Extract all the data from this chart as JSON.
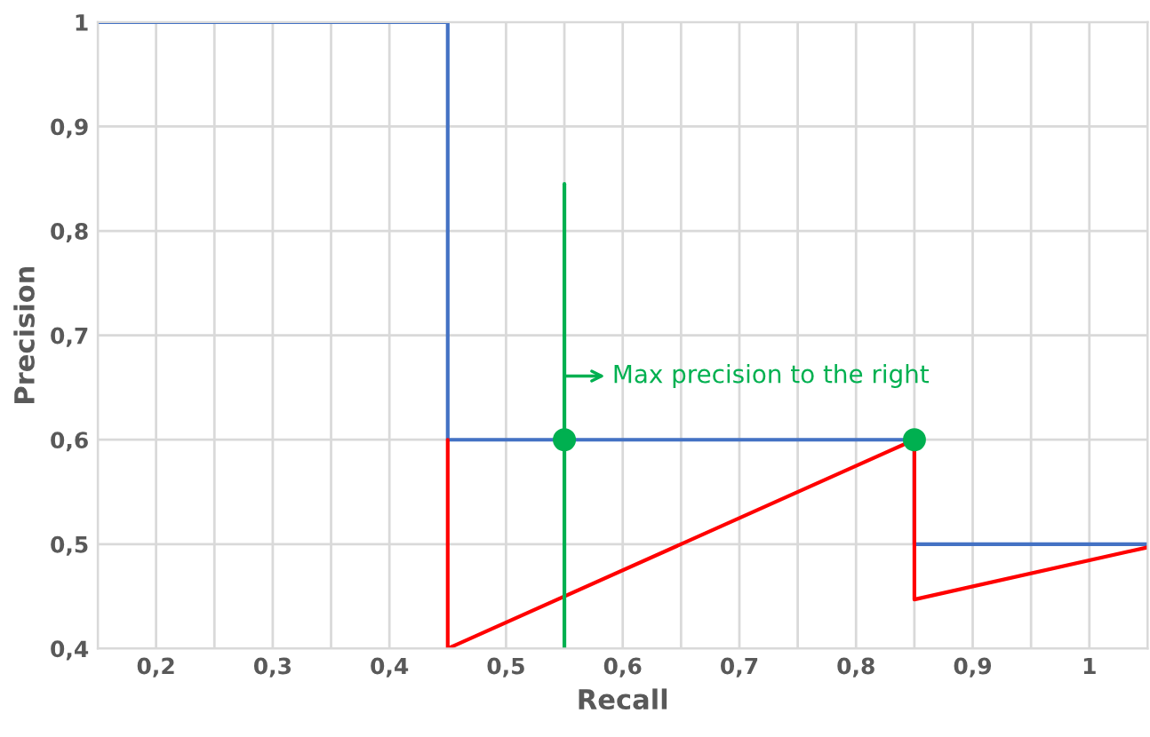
{
  "chart_data": {
    "type": "line",
    "xlabel": "Recall",
    "ylabel": "Precision",
    "x": [
      0.15,
      0.45,
      0.45,
      0.85,
      0.85,
      1.05
    ],
    "series": [
      {
        "color": "#4472c4",
        "values": [
          1,
          1,
          0.6,
          0.6,
          0.5,
          0.5
        ]
      },
      {
        "color": "#ff0000",
        "x": [
          0.45,
          0.45,
          0.85,
          0.85,
          1.05
        ],
        "values": [
          0.6,
          0.4,
          0.6,
          0.447,
          0.497
        ]
      },
      {
        "color": "#00b050",
        "x": [
          0.55,
          0.55
        ],
        "values": [
          0.4,
          0.845
        ]
      },
      {
        "type": "scatter",
        "color": "#00b050",
        "x": [
          0.55,
          0.85
        ],
        "values": [
          0.6,
          0.6
        ]
      }
    ],
    "annotations": [
      "Max precision to the right"
    ],
    "xlim": [
      0.15,
      1.05
    ],
    "xticks": [
      {
        "value": 0.15,
        "label": null
      },
      {
        "value": 0.2,
        "label": "0,2"
      },
      {
        "value": 0.25,
        "label": null
      },
      {
        "value": 0.3,
        "label": "0,3"
      },
      {
        "value": 0.35,
        "label": null
      },
      {
        "value": 0.4,
        "label": "0,4"
      },
      {
        "value": 0.45,
        "label": null
      },
      {
        "value": 0.5,
        "label": "0,5"
      },
      {
        "value": 0.55,
        "label": null
      },
      {
        "value": 0.6,
        "label": "0,6"
      },
      {
        "value": 0.65,
        "label": null
      },
      {
        "value": 0.7,
        "label": "0,7"
      },
      {
        "value": 0.75,
        "label": null
      },
      {
        "value": 0.8,
        "label": "0,8"
      },
      {
        "value": 0.85,
        "label": null
      },
      {
        "value": 0.9,
        "label": "0,9"
      },
      {
        "value": 0.95,
        "label": null
      },
      {
        "value": 1,
        "label": "1"
      },
      {
        "value": 1.05,
        "label": null
      }
    ],
    "ylim": [
      0.4,
      1
    ],
    "yticks": [
      {
        "value": 0.4,
        "label": "0,4"
      },
      {
        "value": 0.5,
        "label": "0,5"
      },
      {
        "value": 0.6,
        "label": "0,6"
      },
      {
        "value": 0.7,
        "label": "0,7"
      },
      {
        "value": 0.8,
        "label": "0,8"
      },
      {
        "value": 0.9,
        "label": "0,9"
      },
      1
    ],
    "grid": true,
    "line_style": "solid"
  }
}
